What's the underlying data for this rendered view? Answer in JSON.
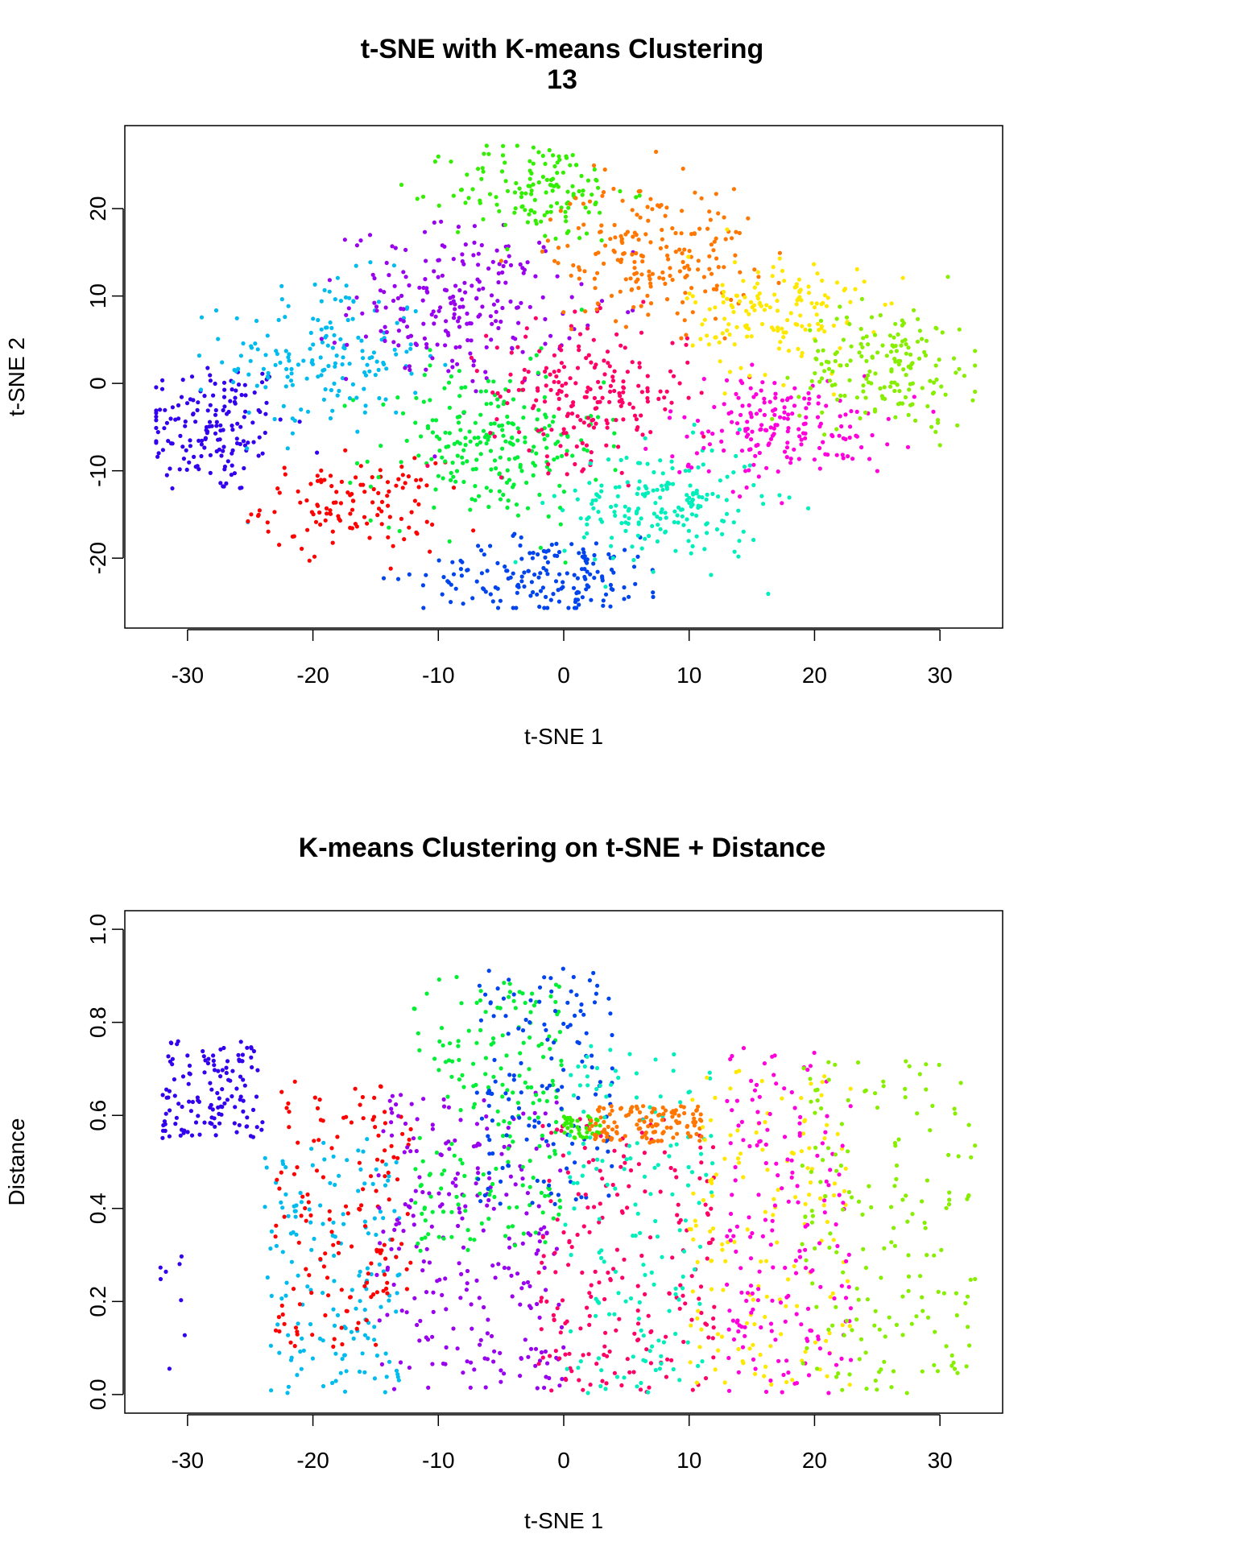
{
  "palette": [
    "#3300EE",
    "#0044EE",
    "#00BBEE",
    "#00EEBB",
    "#00EE33",
    "#88EE00",
    "#FFE800",
    "#FF7700",
    "#FF0000",
    "#FF0066",
    "#FF00DD",
    "#9900EE",
    "#33EE00"
  ],
  "chart_data": [
    {
      "type": "scatter",
      "title": "t-SNE with K-means Clustering",
      "subtitle": "13",
      "xlabel": "t-SNE 1",
      "ylabel": "t-SNE 2",
      "xlim": [
        -35,
        35
      ],
      "ylim": [
        -28,
        29.5
      ],
      "x_ticks": [
        -30,
        -20,
        -10,
        0,
        10,
        20,
        30
      ],
      "y_ticks": [
        -20,
        -10,
        0,
        10,
        20
      ],
      "grid": false,
      "clusters": [
        {
          "color": "#3300EE",
          "cx": -28,
          "cy": -5,
          "sx": 3,
          "sy": 4,
          "n": 160
        },
        {
          "color": "#00BBEE",
          "cx": -19,
          "cy": 3,
          "sx": 4,
          "sy": 4.5,
          "n": 170
        },
        {
          "color": "#FF0000",
          "cx": -17,
          "cy": -14,
          "sx": 3.5,
          "sy": 2.5,
          "n": 120
        },
        {
          "color": "#9900EE",
          "cx": -8,
          "cy": 9,
          "sx": 4.5,
          "sy": 4.5,
          "n": 220
        },
        {
          "color": "#00EE33",
          "cx": -6,
          "cy": -7,
          "sx": 4.5,
          "sy": 4.5,
          "n": 230
        },
        {
          "color": "#33EE00",
          "cx": -2,
          "cy": 22,
          "sx": 3.5,
          "sy": 3,
          "n": 140
        },
        {
          "color": "#0044EE",
          "cx": -1,
          "cy": -22,
          "sx": 5,
          "sy": 2.2,
          "n": 170
        },
        {
          "color": "#FF0066",
          "cx": 2,
          "cy": -1,
          "sx": 4,
          "sy": 4,
          "n": 200
        },
        {
          "color": "#00EEBB",
          "cx": 8,
          "cy": -14,
          "sx": 4,
          "sy": 3.5,
          "n": 190
        },
        {
          "color": "#FF7700",
          "cx": 7,
          "cy": 15,
          "sx": 4,
          "sy": 4,
          "n": 200
        },
        {
          "color": "#FFE800",
          "cx": 17,
          "cy": 8,
          "sx": 3.5,
          "sy": 3.5,
          "n": 150
        },
        {
          "color": "#FF00DD",
          "cx": 17,
          "cy": -5,
          "sx": 4.5,
          "sy": 3,
          "n": 180
        },
        {
          "color": "#88EE00",
          "cx": 26,
          "cy": 2,
          "sx": 3.5,
          "sy": 3.5,
          "n": 170
        }
      ]
    },
    {
      "type": "scatter",
      "title": "K-means Clustering on t-SNE + Distance",
      "xlabel": "t-SNE 1",
      "ylabel": "Distance",
      "xlim": [
        -35,
        35
      ],
      "ylim": [
        -0.04,
        1.04
      ],
      "x_ticks": [
        -30,
        -20,
        -10,
        0,
        10,
        20,
        30
      ],
      "y_ticks": [
        0.0,
        0.2,
        0.4,
        0.6,
        0.8,
        1.0
      ],
      "y_tick_labels": [
        "0.0",
        "0.2",
        "0.4",
        "0.6",
        "0.8",
        "1.0"
      ],
      "grid": false,
      "clusters": [
        {
          "color": "#3300EE",
          "x": [
            -32,
            -24
          ],
          "y": [
            0.55,
            0.76
          ],
          "n": 130
        },
        {
          "color": "#3300EE",
          "x": [
            -32.5,
            -30
          ],
          "y": [
            0.0,
            0.3
          ],
          "n": 8
        },
        {
          "color": "#00BBEE",
          "x": [
            -24,
            -13
          ],
          "y": [
            0.0,
            0.55
          ],
          "n": 160
        },
        {
          "color": "#FF0000",
          "x": [
            -23,
            -14
          ],
          "y": [
            0.1,
            0.68
          ],
          "n": 120
        },
        {
          "color": "#FF0000",
          "x": [
            -15,
            -12
          ],
          "y": [
            0.2,
            0.6
          ],
          "n": 25
        },
        {
          "color": "#9900EE",
          "x": [
            -15,
            0
          ],
          "y": [
            0.0,
            0.65
          ],
          "n": 240
        },
        {
          "color": "#00EE33",
          "x": [
            -12,
            0
          ],
          "y": [
            0.3,
            0.9
          ],
          "n": 200
        },
        {
          "color": "#0044EE",
          "x": [
            -7,
            4
          ],
          "y": [
            0.4,
            0.92
          ],
          "n": 140
        },
        {
          "color": "#FF0066",
          "x": [
            -2,
            12
          ],
          "y": [
            0.0,
            0.6
          ],
          "n": 200
        },
        {
          "color": "#00EEBB",
          "x": [
            0,
            12
          ],
          "y": [
            0.0,
            0.75
          ],
          "n": 150
        },
        {
          "color": "#33EE00",
          "x": [
            0,
            3
          ],
          "y": [
            0.55,
            0.6
          ],
          "n": 40
        },
        {
          "color": "#FF7700",
          "x": [
            2,
            11
          ],
          "y": [
            0.54,
            0.62
          ],
          "n": 120
        },
        {
          "color": "#FFE800",
          "x": [
            10,
            23
          ],
          "y": [
            0.0,
            0.7
          ],
          "n": 150
        },
        {
          "color": "#FF00DD",
          "x": [
            13,
            23
          ],
          "y": [
            0.0,
            0.75
          ],
          "n": 180
        },
        {
          "color": "#88EE00",
          "x": [
            19,
            33
          ],
          "y": [
            0.0,
            0.72
          ],
          "n": 170
        }
      ]
    }
  ]
}
